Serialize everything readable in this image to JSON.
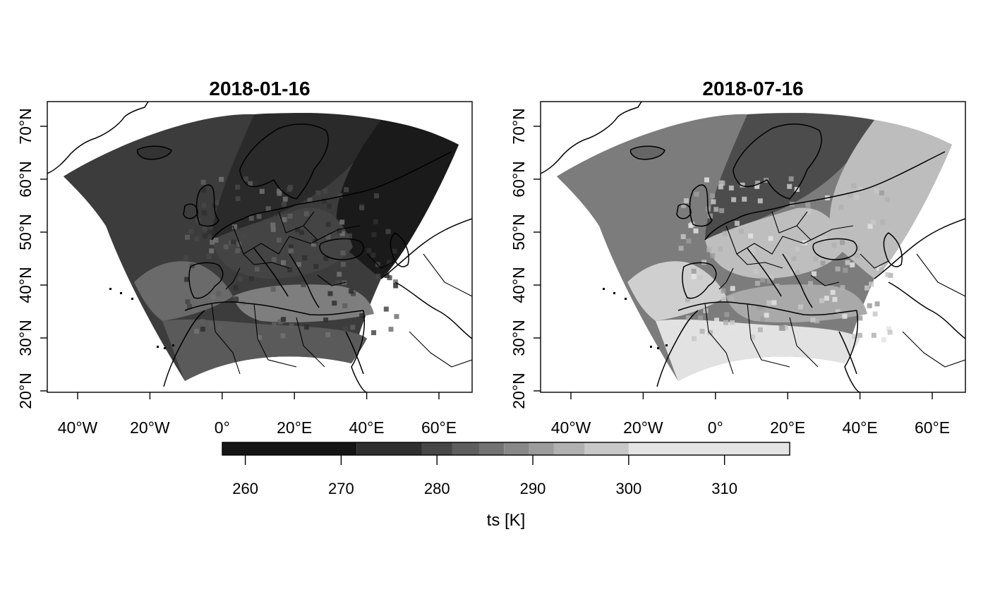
{
  "variable_label": "ts [K]",
  "panels": [
    {
      "title": "2018-01-16",
      "colors": {
        "north": "#2a2a2a",
        "atlantic": "#3c3c3c",
        "east": "#1a1a1a",
        "central": "#444444",
        "iberia": "#6a6a6a",
        "med": "#7e7e7e",
        "sahara": "#5a5a5a",
        "iceland": "#333333"
      }
    },
    {
      "title": "2018-07-16",
      "colors": {
        "north": "#4c4c4c",
        "atlantic": "#7c7c7c",
        "east": "#bdbdbd",
        "central": "#bebebe",
        "iberia": "#cfcfcf",
        "med": "#a9a9a9",
        "sahara": "#e2e2e2",
        "iceland": "#666666"
      }
    }
  ],
  "x_ticks": [
    "40°W",
    "20°W",
    "0°",
    "20°E",
    "40°E",
    "60°E"
  ],
  "x_tick_values": [
    -40,
    -20,
    0,
    20,
    40,
    60
  ],
  "y_ticks": [
    "20°N",
    "30°N",
    "40°N",
    "50°N",
    "60°N",
    "70°N"
  ],
  "y_tick_values": [
    20,
    30,
    40,
    50,
    60,
    70
  ],
  "colorbar": {
    "ticks": [
      "260",
      "270",
      "280",
      "290",
      "300",
      "310"
    ],
    "tick_values": [
      260,
      270,
      280,
      290,
      300,
      310
    ],
    "range": [
      257.6,
      316.8
    ],
    "breaks": [
      257.6,
      271.6,
      278.4,
      281.6,
      284.4,
      287.0,
      289.6,
      292.2,
      295.4,
      300.0,
      316.8
    ],
    "bin_colors": [
      "#151515",
      "#2f2f2f",
      "#474747",
      "#5e5e5e",
      "#737373",
      "#888888",
      "#9c9c9c",
      "#b1b1b1",
      "#c8c8c8",
      "#e4e4e4"
    ]
  },
  "map_colors": {
    "background": "#ffffff",
    "outline": "#000000"
  }
}
